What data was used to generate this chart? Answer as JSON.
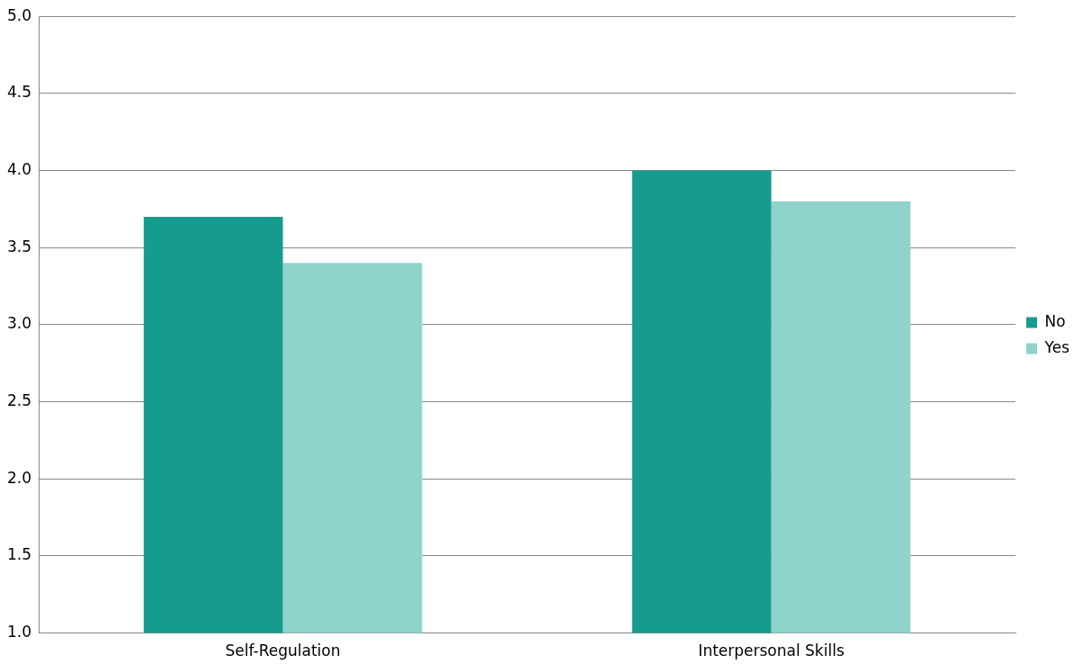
{
  "chart_data": {
    "type": "bar",
    "categories": [
      "Self-Regulation",
      "Interpersonal Skills"
    ],
    "series": [
      {
        "name": "No",
        "color": "#169c8e",
        "values": [
          3.7,
          4.0
        ]
      },
      {
        "name": "Yes",
        "color": "#8fd3cb",
        "values": [
          3.4,
          3.8
        ]
      }
    ],
    "ylim": [
      1.0,
      5.0
    ],
    "yticks": [
      {
        "value": 1,
        "label": "1.0"
      },
      {
        "value": 1.5,
        "label": "1.5"
      },
      {
        "value": 2,
        "label": "2.0"
      },
      {
        "value": 2.5,
        "label": "2.5"
      },
      {
        "value": 3,
        "label": "3.0"
      },
      {
        "value": 3.5,
        "label": "3.5"
      },
      {
        "value": 4,
        "label": "4.0"
      },
      {
        "value": 4.5,
        "label": "4.5"
      },
      {
        "value": 5,
        "label": "5.0"
      }
    ],
    "grid": "y",
    "legend": "right"
  }
}
